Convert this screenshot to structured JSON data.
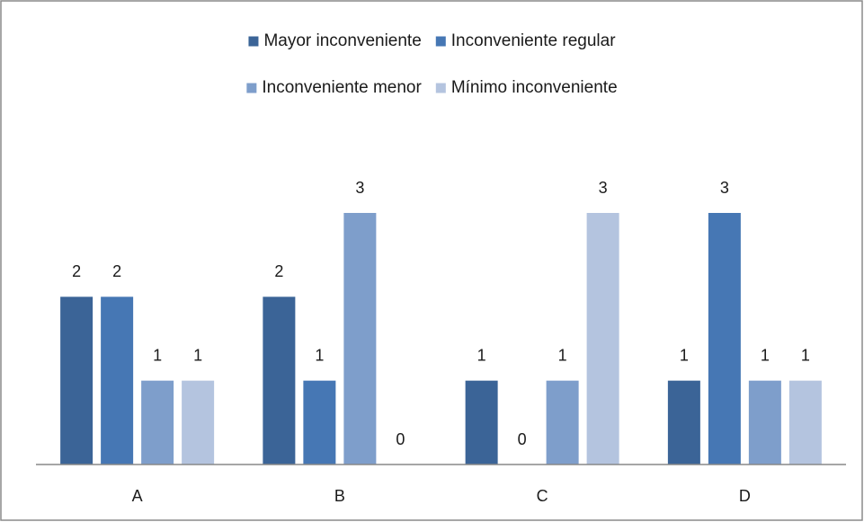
{
  "chart_data": {
    "type": "bar",
    "categories": [
      "A",
      "B",
      "C",
      "D"
    ],
    "series": [
      {
        "name": "Mayor inconveniente",
        "color": "#3b6497",
        "values": [
          2,
          2,
          1,
          1
        ]
      },
      {
        "name": "Inconveniente regular",
        "color": "#4677b4",
        "values": [
          2,
          1,
          0,
          3
        ]
      },
      {
        "name": "Inconveniente menor",
        "color": "#7e9ecb",
        "values": [
          1,
          3,
          1,
          1
        ]
      },
      {
        "name": "Mínimo inconveniente",
        "color": "#b4c4df",
        "values": [
          1,
          0,
          3,
          1
        ]
      }
    ],
    "legend": "top"
  }
}
